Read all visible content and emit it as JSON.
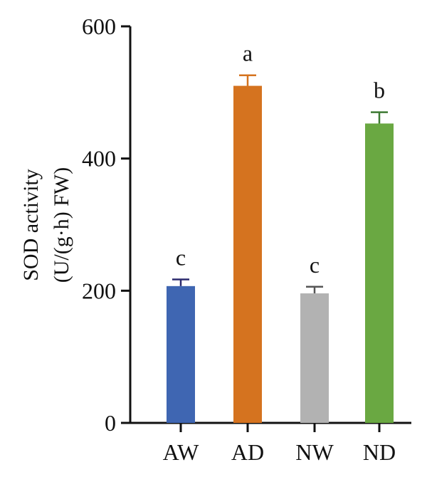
{
  "chart_data": {
    "type": "bar",
    "title": "",
    "xlabel": "",
    "ylabel": [
      "SOD activity",
      "(U/(g·h) FW)"
    ],
    "ylim": [
      0,
      600
    ],
    "yticks": [
      0,
      200,
      400,
      600
    ],
    "ytick_labels": [
      "0",
      "200",
      "400",
      "600"
    ],
    "categories": [
      "AW",
      "AD",
      "NW",
      "ND"
    ],
    "values": [
      207,
      510,
      196,
      453
    ],
    "errors": [
      10,
      16,
      10,
      17
    ],
    "significance": [
      "c",
      "a",
      "c",
      "b"
    ],
    "colors": [
      "#3f66b2",
      "#d5731f",
      "#b2b2b2",
      "#6aa842"
    ],
    "error_colors": [
      "#2c2a6e",
      "#d5731f",
      "#555555",
      "#3d7a33"
    ],
    "grid": false,
    "legend": "none"
  }
}
